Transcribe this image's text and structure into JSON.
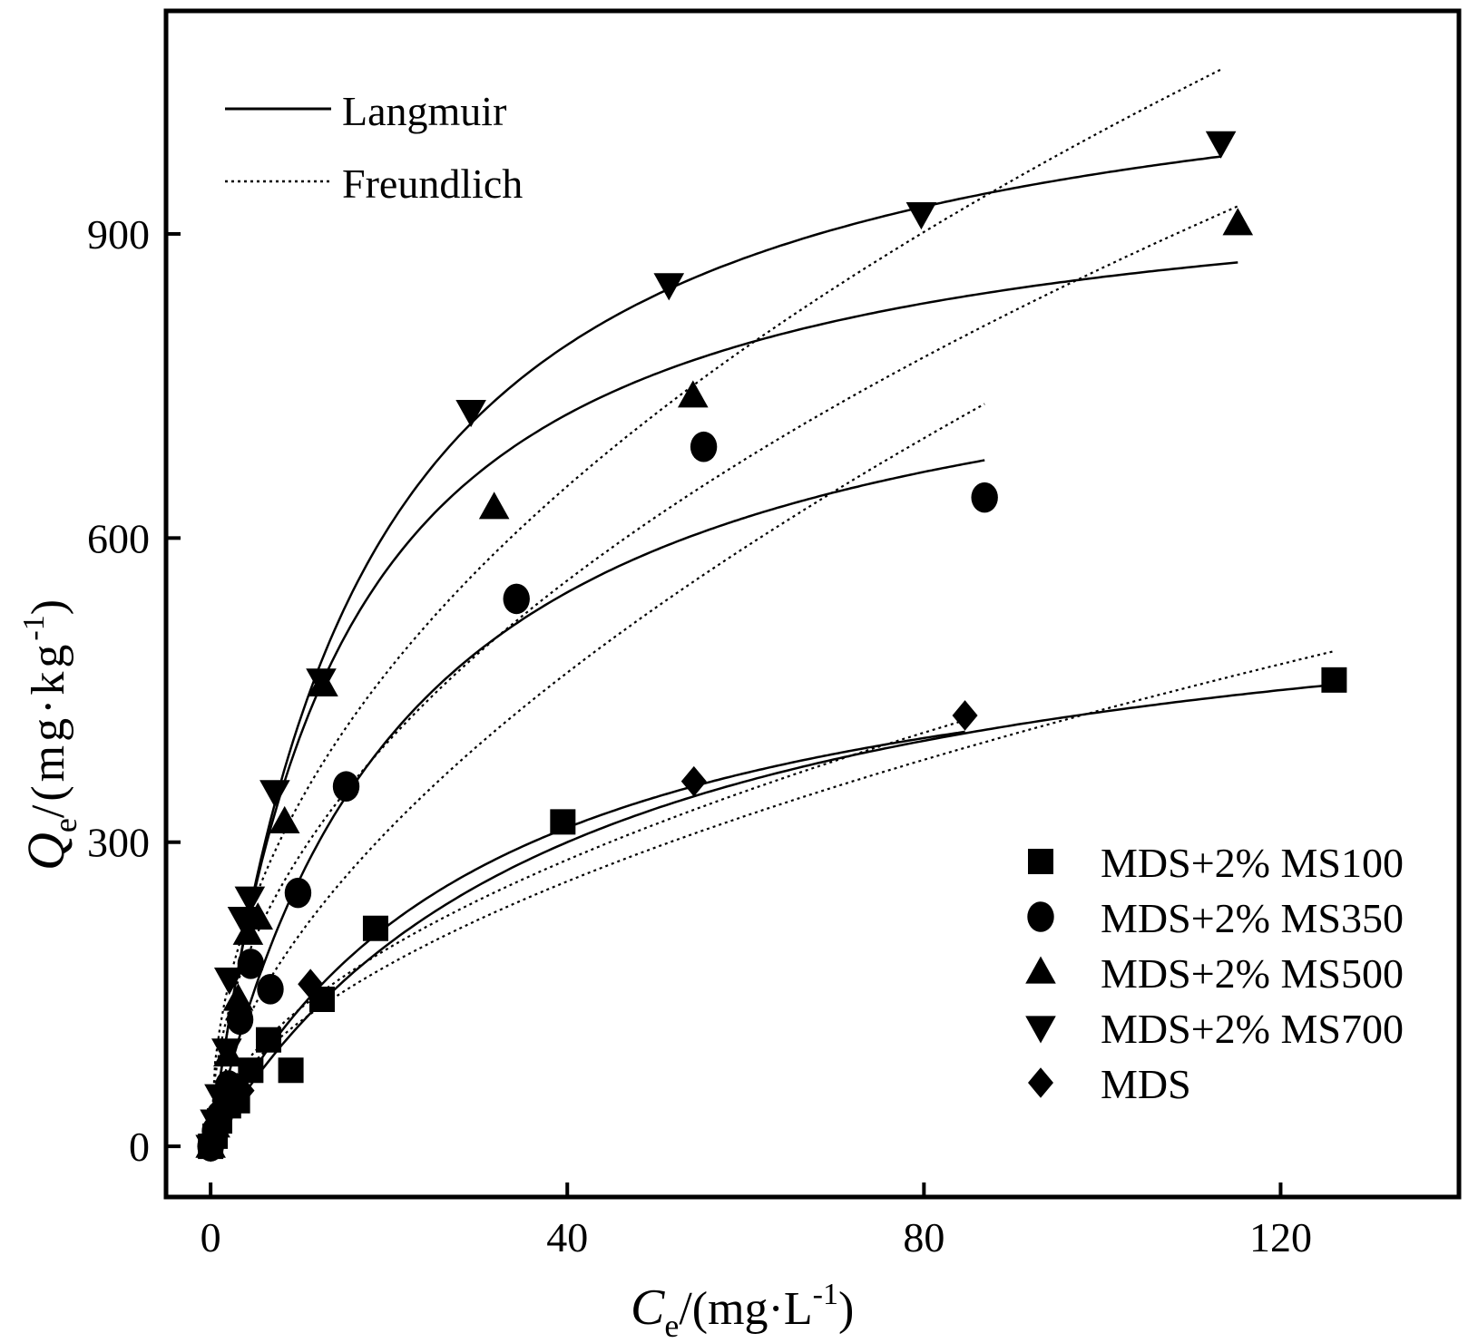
{
  "chart_data": {
    "type": "scatter",
    "title": "",
    "xlabel": {
      "main": "C",
      "sub": "e",
      "rest": "/(mg·L",
      "sup": "-1",
      "end": ")"
    },
    "ylabel": {
      "main": "Q",
      "sub": "e",
      "rest": "/(mg·kg",
      "sup": "-1",
      "end": ")"
    },
    "xlim": [
      -5,
      140
    ],
    "ylim": [
      -50,
      1120
    ],
    "xticks": [
      0,
      40,
      80,
      120
    ],
    "yticks": [
      0,
      300,
      600,
      900
    ],
    "xtick_labels": [
      "0",
      "40",
      "80",
      "120"
    ],
    "ytick_labels": [
      "0",
      "300",
      "600",
      "900"
    ],
    "grid": false,
    "model_legend": [
      {
        "label": "Langmuir",
        "style": "solid"
      },
      {
        "label": "Freundlich",
        "style": "dotted"
      }
    ],
    "legend_position": "bottom-right",
    "series": [
      {
        "name": "MDS+2% MS100",
        "marker": "square",
        "x": [
          0,
          0.5,
          1,
          2,
          3,
          4.5,
          6.5,
          9,
          12.5,
          18.5,
          39.5,
          126
        ],
        "y": [
          0,
          10,
          25,
          40,
          45,
          75,
          105,
          75,
          145,
          215,
          320,
          460
        ],
        "langmuir": {
          "qm": 600,
          "kl": 0.025,
          "xmax": 126
        },
        "freundlich": {
          "kf": 35,
          "n": 0.545,
          "xmax": 126
        }
      },
      {
        "name": "MDS+2% MS350",
        "marker": "circle",
        "x": [
          0,
          0.5,
          1,
          2,
          3.3,
          4.5,
          6.7,
          9.8,
          15.2,
          34.3,
          55.3,
          86.8
        ],
        "y": [
          0,
          15,
          30,
          60,
          125,
          180,
          155,
          250,
          355,
          540,
          690,
          640
        ],
        "langmuir": {
          "qm": 850,
          "kl": 0.045,
          "xmax": 86.8
        },
        "freundlich": {
          "kf": 55,
          "n": 0.58,
          "xmax": 86.8
        }
      },
      {
        "name": "MDS+2% MS500",
        "marker": "triangle-up",
        "x": [
          0,
          0.5,
          1,
          2,
          3.1,
          4.2,
          5.3,
          8.3,
          12.6,
          31.8,
          54.1,
          115.2
        ],
        "y": [
          0,
          20,
          40,
          90,
          145,
          210,
          225,
          320,
          455,
          630,
          740,
          910
        ],
        "langmuir": {
          "qm": 980,
          "kl": 0.07,
          "xmax": 115.2
        },
        "freundlich": {
          "kf": 95,
          "n": 0.48,
          "xmax": 115.2
        }
      },
      {
        "name": "MDS+2% MS700",
        "marker": "triangle-down",
        "x": [
          0,
          0.5,
          1,
          1.8,
          2.1,
          3.6,
          4.4,
          7.2,
          12.4,
          29.2,
          51.4,
          79.7,
          113.3
        ],
        "y": [
          0,
          25,
          50,
          95,
          165,
          225,
          245,
          350,
          460,
          725,
          850,
          920,
          990
        ],
        "langmuir": {
          "qm": 1120,
          "kl": 0.06,
          "xmax": 113.3
        },
        "freundlich": {
          "kf": 115,
          "n": 0.47,
          "xmax": 113.3
        }
      },
      {
        "name": "MDS",
        "marker": "diamond",
        "x": [
          0,
          0.5,
          1,
          2,
          3.5,
          11.2,
          54.2,
          84.6
        ],
        "y": [
          0,
          15,
          30,
          50,
          55,
          160,
          360,
          425
        ],
        "langmuir": {
          "qm": 560,
          "kl": 0.032,
          "xmax": 84.6
        },
        "freundlich": {
          "kf": 40,
          "n": 0.53,
          "xmax": 84.6
        }
      }
    ]
  }
}
